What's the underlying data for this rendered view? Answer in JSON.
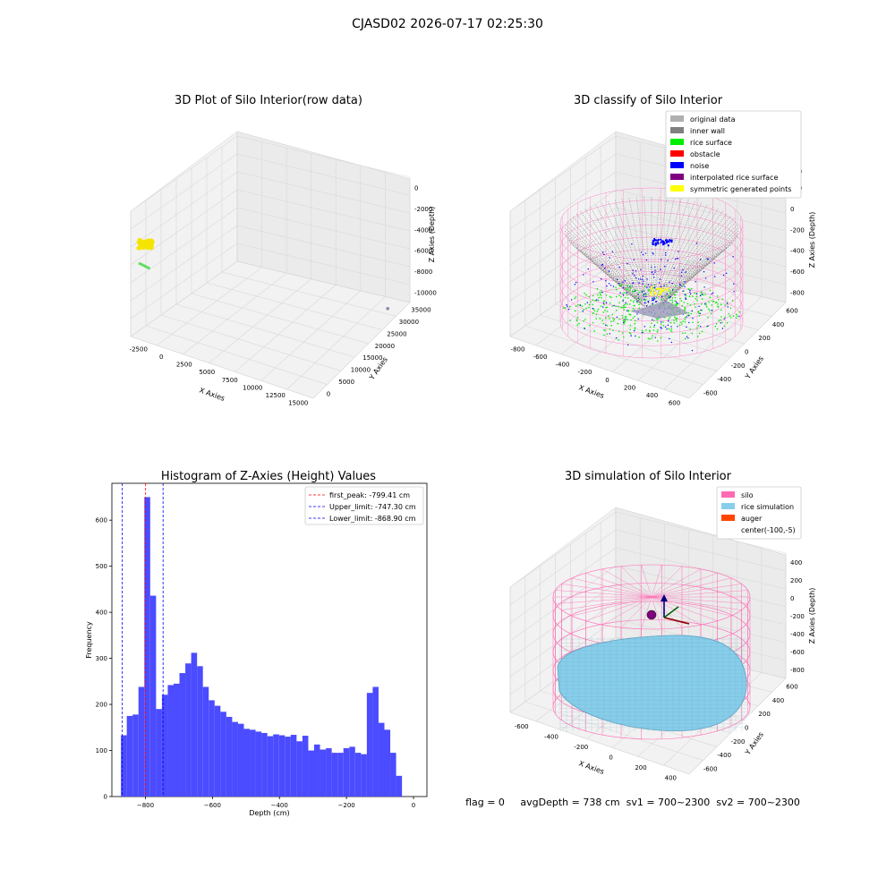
{
  "figure": {
    "suptitle": "CJASD02 2026-07-17 02:25:30",
    "status_line": "flag = 0     avgDepth = 738 cm  sv1 = 700~2300  sv2 = 700~2300"
  },
  "chart_data": [
    {
      "type": "scatter3d",
      "title": "3D Plot of Silo Interior(row data)",
      "xlabel": "X Axies",
      "ylabel": "Y Axies",
      "zlabel": "Z Axies (Depth)",
      "x_ticks": [
        "-2500",
        "0",
        "2500",
        "5000",
        "7500",
        "10000",
        "12500",
        "15000"
      ],
      "y_ticks": [
        "0",
        "5000",
        "10000",
        "15000",
        "20000",
        "25000",
        "30000",
        "35000"
      ],
      "z_ticks": [
        "0",
        "-2000",
        "-4000",
        "-6000",
        "-8000",
        "-10000"
      ],
      "xlim": [
        -3500,
        16500
      ],
      "ylim": [
        -1000,
        37000
      ],
      "zlim": [
        -11500,
        500
      ],
      "clusters": [
        {
          "name": "main",
          "x": -2200,
          "y": 100,
          "z": -2500,
          "color": "#f5e400"
        },
        {
          "name": "green",
          "x": -2800,
          "y": 0,
          "z": -4500,
          "color": "#66dd66"
        },
        {
          "name": "outlier",
          "x": 16000,
          "y": 30000,
          "z": -10500,
          "color": "#8888aa"
        }
      ]
    },
    {
      "type": "scatter3d",
      "title": "3D classify of Silo Interior",
      "xlabel": "X Axies",
      "ylabel": "Y Axies",
      "zlabel": "Z Axies (Depth)",
      "x_ticks": [
        "-800",
        "-600",
        "-400",
        "-200",
        "0",
        "200",
        "400",
        "600"
      ],
      "y_ticks": [
        "-600",
        "-400",
        "-200",
        "0",
        "200",
        "400",
        "600"
      ],
      "z_ticks": [
        "200",
        "0",
        "-200",
        "-400",
        "-600",
        "-800"
      ],
      "z_tick_top": "400",
      "xlim": [
        -850,
        650
      ],
      "ylim": [
        -700,
        700
      ],
      "zlim": [
        -950,
        450
      ],
      "legend": [
        {
          "label": "original data",
          "color": "#b0b0b0"
        },
        {
          "label": "inner wall",
          "color": "#808080"
        },
        {
          "label": "rice surface",
          "color": "#00ee00"
        },
        {
          "label": "obstacle",
          "color": "#ff0000"
        },
        {
          "label": "noise",
          "color": "#0000ff"
        },
        {
          "label": "interpolated rice surface",
          "color": "#800080"
        },
        {
          "label": "symmetric generated points",
          "color": "#ffff00"
        }
      ],
      "silo": {
        "radius": 600,
        "z_top": 300,
        "z_bottom": -900,
        "color": "#ff88cc"
      },
      "legend_loc": "upper right"
    },
    {
      "type": "histogram",
      "title": "Histogram of Z-Axies (Height) Values",
      "xlabel": "Depth (cm)",
      "ylabel": "Frequency",
      "xlim": [
        -900,
        40
      ],
      "ylim": [
        0,
        680
      ],
      "x_ticks": [
        -800,
        -600,
        -400,
        -200,
        0
      ],
      "y_ticks": [
        0,
        100,
        200,
        300,
        400,
        500,
        600
      ],
      "bin_start": -873,
      "bin_width": 17.47,
      "counts": [
        133,
        175,
        178,
        238,
        650,
        436,
        190,
        221,
        242,
        245,
        268,
        289,
        312,
        283,
        238,
        209,
        197,
        184,
        173,
        162,
        158,
        147,
        145,
        141,
        138,
        131,
        135,
        133,
        130,
        134,
        120,
        132,
        100,
        113,
        102,
        105,
        95,
        95,
        105,
        108,
        95,
        92,
        225,
        238,
        160,
        145,
        95,
        45
      ],
      "bar_color": "#4b4bff",
      "lines": [
        {
          "label": "first_peak: -799.41 cm",
          "x": -799.41,
          "color": "#ff0000"
        },
        {
          "label": "Upper_limit: -747.30 cm",
          "x": -747.3,
          "color": "#0000ff"
        },
        {
          "label": "Lower_limit: -868.90 cm",
          "x": -868.9,
          "color": "#0000ff"
        }
      ],
      "legend_loc": "upper right"
    },
    {
      "type": "surface3d",
      "title": "3D simulation of Silo Interior",
      "xlabel": "X Axies",
      "ylabel": "Y Axies",
      "zlabel": "Z Axies (Depth)",
      "x_ticks": [
        "-600",
        "-400",
        "-200",
        "0",
        "200",
        "400"
      ],
      "y_ticks": [
        "-600",
        "-400",
        "-200",
        "0",
        "200",
        "400",
        "600"
      ],
      "z_ticks": [
        "400",
        "200",
        "0",
        "-200",
        "-400",
        "-600",
        "-800"
      ],
      "xlim": [
        -700,
        500
      ],
      "ylim": [
        -700,
        700
      ],
      "zlim": [
        -950,
        500
      ],
      "legend": [
        {
          "label": "silo",
          "color": "#ff69b4"
        },
        {
          "label": "rice simulation",
          "color": "#87ceeb"
        },
        {
          "label": "auger",
          "color": "#ff4500"
        },
        {
          "label": "center(-100,-5)",
          "color": ""
        }
      ],
      "silo": {
        "radius": 600,
        "z_top": 200,
        "z_bottom": -900,
        "color": "#ff69b4"
      },
      "legend_loc": "upper right"
    }
  ]
}
